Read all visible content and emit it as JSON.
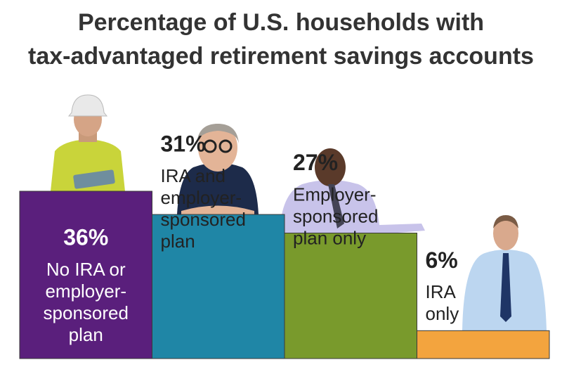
{
  "chart_data": {
    "type": "bar",
    "title": [
      "Percentage of U.S. households with",
      "tax-advantaged retirement savings accounts"
    ],
    "categories": [
      [
        "No IRA or",
        "employer-",
        "sponsored",
        "plan"
      ],
      [
        "IRA and",
        "employer-",
        "sponsored",
        "plan"
      ],
      [
        "Employer-",
        "sponsored",
        "plan only"
      ],
      [
        "IRA",
        "only"
      ]
    ],
    "values": [
      36,
      31,
      27,
      6
    ],
    "value_labels": [
      "36%",
      "31%",
      "27%",
      "6%"
    ],
    "colors": [
      "#5a1f7c",
      "#1f86a6",
      "#799a2c",
      "#f3a43e"
    ]
  }
}
